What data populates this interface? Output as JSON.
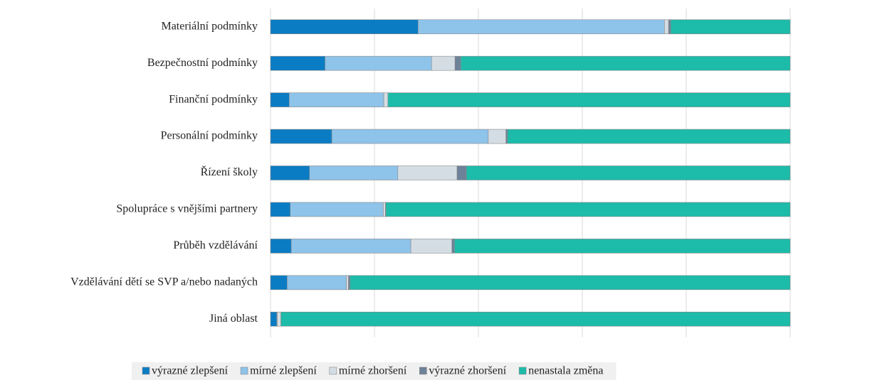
{
  "chart_data": {
    "type": "stacked-bar-horizontal",
    "categories": [
      "Materiální podmínky",
      "Bezpečnostní podmínky",
      "Finanční podmínky",
      "Personální podmínky",
      "Řízení školy",
      "Spolupráce s vnějšími partnery",
      "Průběh vzdělávání",
      "Vzdělávání dětí se SVP a/nebo nadaných",
      "Jiná oblast"
    ],
    "series": [
      {
        "name": "výrazné zlepšení",
        "color": "#0a7cc4",
        "values": [
          28.4,
          10.5,
          3.6,
          11.8,
          7.5,
          3.8,
          4.0,
          3.2,
          1.2
        ]
      },
      {
        "name": "mírné zlepšení",
        "color": "#8ec3ea",
        "values": [
          47.4,
          20.5,
          18.2,
          30.1,
          17.0,
          17.9,
          23.0,
          11.4,
          0.1
        ]
      },
      {
        "name": "mírné zhoršení",
        "color": "#d4dde4",
        "values": [
          0.8,
          4.5,
          0.8,
          3.4,
          11.4,
          0.4,
          7.9,
          0.4,
          0.7
        ]
      },
      {
        "name": "výrazné zhoršení",
        "color": "#6d8299",
        "values": [
          0.4,
          1.1,
          0,
          0.3,
          1.8,
          0.1,
          0.5,
          0.3,
          0
        ]
      },
      {
        "name": "nenastala změna",
        "color": "#1dbba9",
        "values": [
          23.0,
          63.4,
          77.4,
          54.4,
          62.3,
          77.8,
          64.6,
          84.7,
          98.0
        ]
      }
    ],
    "xlim": [
      0,
      100
    ],
    "xticks": [
      0,
      20,
      40,
      60,
      80,
      100
    ],
    "grid": true,
    "legend": "bottom"
  }
}
